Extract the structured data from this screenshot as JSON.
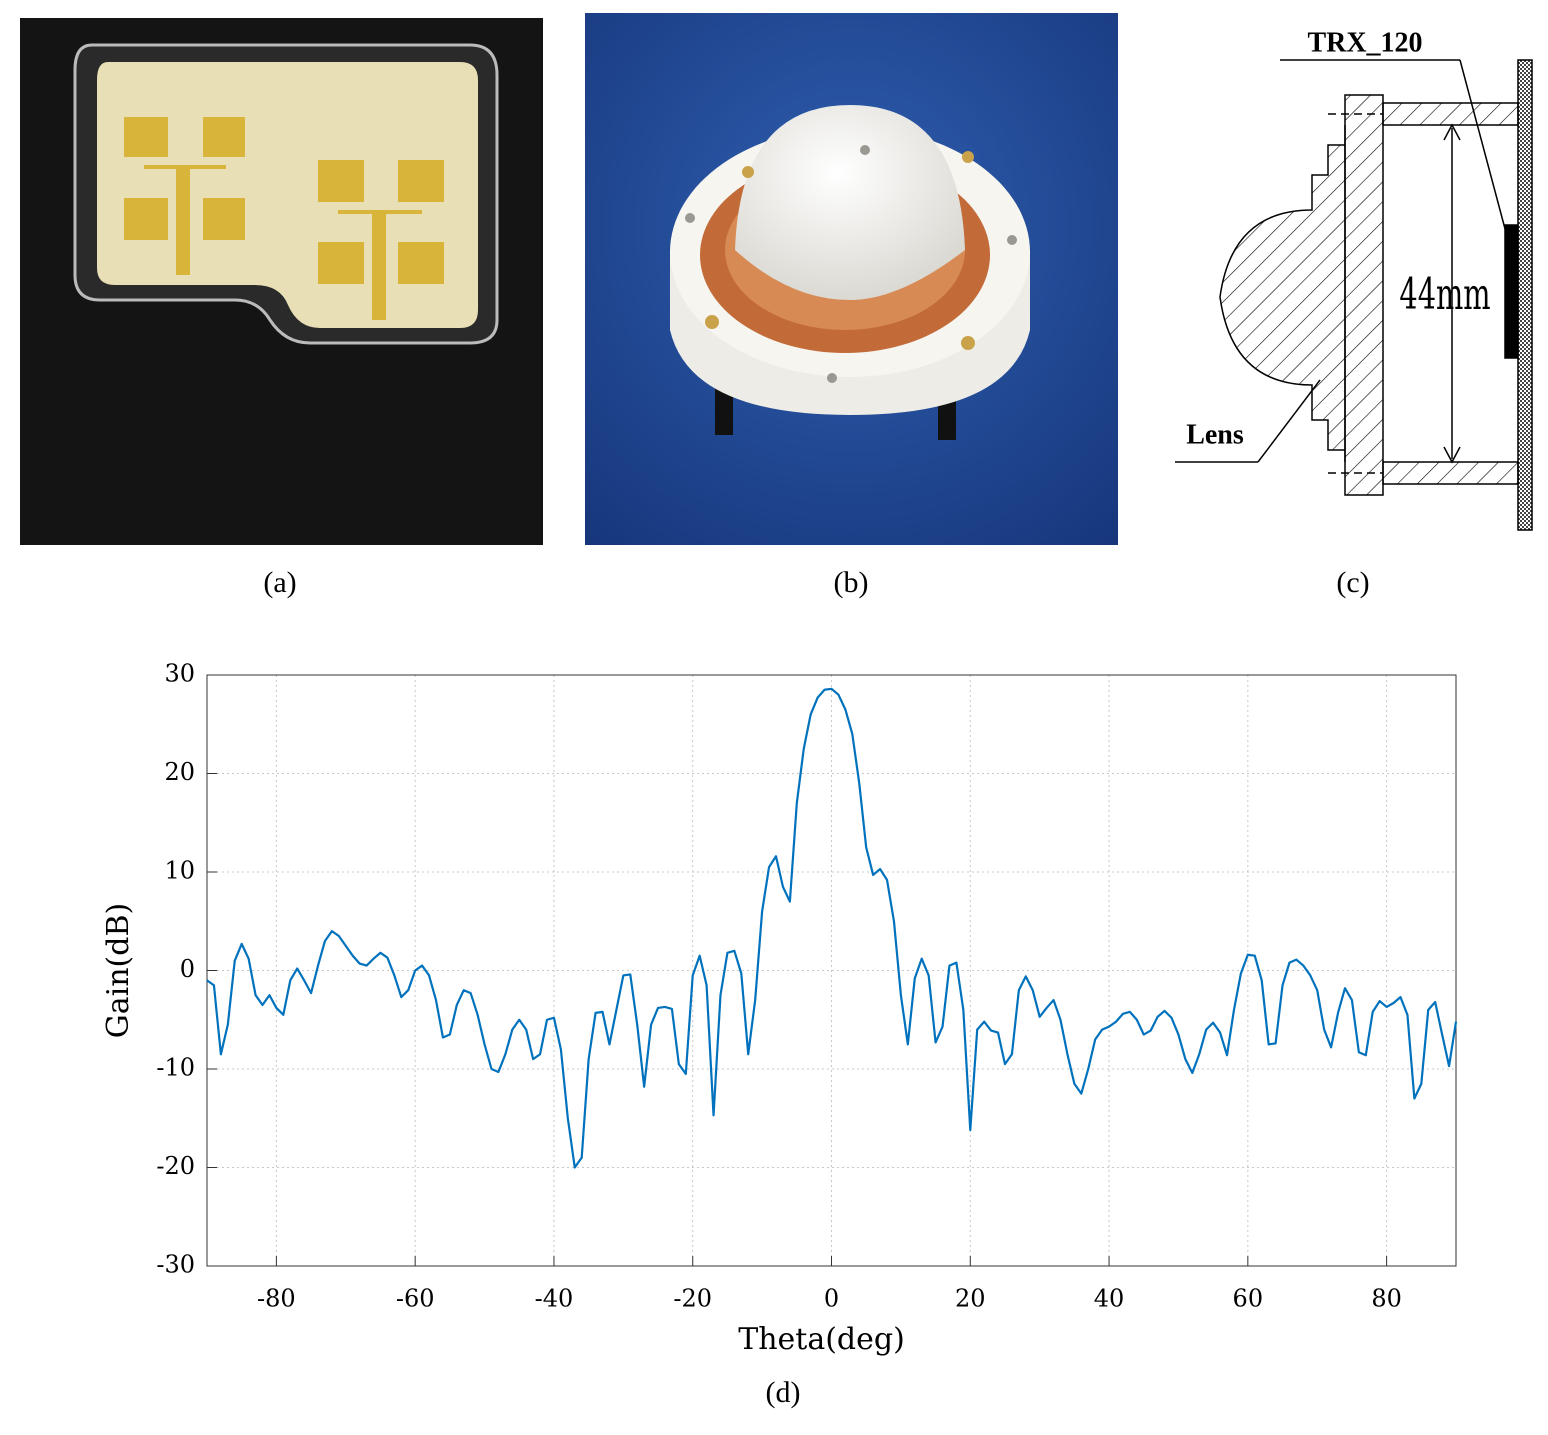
{
  "panels": {
    "a": {
      "caption": "(a)"
    },
    "b": {
      "caption": "(b)"
    },
    "c": {
      "caption": "(c)",
      "labels": {
        "chip": "TRX_120",
        "distance": "44mm",
        "lens": "Lens"
      }
    },
    "d": {
      "caption": "(d)"
    }
  },
  "chart_data": {
    "type": "line",
    "xlabel": "Theta(deg)",
    "ylabel": "Gain(dB)",
    "color": "#0072bd",
    "grid": true,
    "xlim": [
      -90,
      90
    ],
    "ylim": [
      -30,
      30
    ],
    "xticks": [
      -80,
      -60,
      -40,
      -20,
      0,
      20,
      40,
      60,
      80
    ],
    "yticks": [
      -30,
      -20,
      -10,
      0,
      10,
      20,
      30
    ],
    "x": [
      -90,
      -89,
      -88,
      -87,
      -86,
      -85,
      -84,
      -83,
      -82,
      -81,
      -80,
      -79,
      -78,
      -77,
      -76,
      -75,
      -74,
      -73,
      -72,
      -71,
      -70,
      -69,
      -68,
      -67,
      -66,
      -65,
      -64,
      -63,
      -62,
      -61,
      -60,
      -59,
      -58,
      -57,
      -56,
      -55,
      -54,
      -53,
      -52,
      -51,
      -50,
      -49,
      -48,
      -47,
      -46,
      -45,
      -44,
      -43,
      -42,
      -41,
      -40,
      -39,
      -38,
      -37,
      -36,
      -35,
      -34,
      -33,
      -32,
      -31,
      -30,
      -29,
      -28,
      -27,
      -26,
      -25,
      -24,
      -23,
      -22,
      -21,
      -20,
      -19,
      -18,
      -17,
      -16,
      -15,
      -14,
      -13,
      -12,
      -11,
      -10,
      -9,
      -8,
      -7,
      -6,
      -5,
      -4,
      -3,
      -2,
      -1,
      0,
      1,
      2,
      3,
      4,
      5,
      6,
      7,
      8,
      9,
      10,
      11,
      12,
      13,
      14,
      15,
      16,
      17,
      18,
      19,
      20,
      21,
      22,
      23,
      24,
      25,
      26,
      27,
      28,
      29,
      30,
      31,
      32,
      33,
      34,
      35,
      36,
      37,
      38,
      39,
      40,
      41,
      42,
      43,
      44,
      45,
      46,
      47,
      48,
      49,
      50,
      51,
      52,
      53,
      54,
      55,
      56,
      57,
      58,
      59,
      60,
      61,
      62,
      63,
      64,
      65,
      66,
      67,
      68,
      69,
      70,
      71,
      72,
      73,
      74,
      75,
      76,
      77,
      78,
      79,
      80,
      81,
      82,
      83,
      84,
      85,
      86,
      87,
      88,
      89,
      90
    ],
    "values": [
      -1,
      -1.5,
      -8.5,
      -5.5,
      1,
      2.7,
      1.2,
      -2.5,
      -3.5,
      -2.5,
      -3.8,
      -4.5,
      -1,
      0.2,
      -1,
      -2.3,
      0.5,
      3,
      4,
      3.5,
      2.5,
      1.5,
      0.7,
      0.5,
      1.2,
      1.8,
      1.3,
      -0.5,
      -2.7,
      -2,
      0,
      0.5,
      -0.5,
      -3,
      -6.8,
      -6.5,
      -3.5,
      -2,
      -2.3,
      -4.5,
      -7.5,
      -10,
      -10.3,
      -8.5,
      -6,
      -5,
      -6,
      -9,
      -8.5,
      -5,
      -4.8,
      -8,
      -15,
      -20,
      -19,
      -9,
      -4.3,
      -4.2,
      -7.5,
      -4,
      -0.5,
      -0.4,
      -5.5,
      -11.8,
      -5.5,
      -3.8,
      -3.7,
      -3.9,
      -9.5,
      -10.5,
      -0.5,
      1.5,
      -1.5,
      -14.7,
      -2.5,
      1.8,
      2,
      -0.3,
      -8.5,
      -3,
      6,
      10.5,
      11.6,
      8.5,
      7,
      17,
      22.5,
      26,
      27.7,
      28.5,
      28.6,
      28,
      26.5,
      24,
      19,
      12.5,
      9.7,
      10.3,
      9.2,
      5,
      -2.5,
      -7.5,
      -0.8,
      1.2,
      -0.5,
      -7.3,
      -5.7,
      0.5,
      0.8,
      -4,
      -16.2,
      -6,
      -5.2,
      -6.1,
      -6.3,
      -9.5,
      -8.5,
      -2,
      -0.6,
      -2,
      -4.7,
      -3.8,
      -3,
      -5,
      -8.5,
      -11.5,
      -12.5,
      -10,
      -7,
      -6,
      -5.7,
      -5.2,
      -4.4,
      -4.2,
      -5,
      -6.5,
      -6.1,
      -4.7,
      -4.1,
      -4.8,
      -6.5,
      -9,
      -10.4,
      -8.5,
      -6,
      -5.3,
      -6.3,
      -8.6,
      -4,
      -0.3,
      1.6,
      1.5,
      -1,
      -7.5,
      -7.4,
      -1.5,
      0.8,
      1.1,
      0.5,
      -0.5,
      -2,
      -6,
      -7.8,
      -4.3,
      -1.8,
      -3,
      -8.3,
      -8.6,
      -4.2,
      -3.1,
      -3.7,
      -3.3,
      -2.7,
      -4.5,
      -13,
      -11.5,
      -4,
      -3.2,
      -6.5,
      -9.7,
      -5.2
    ]
  }
}
